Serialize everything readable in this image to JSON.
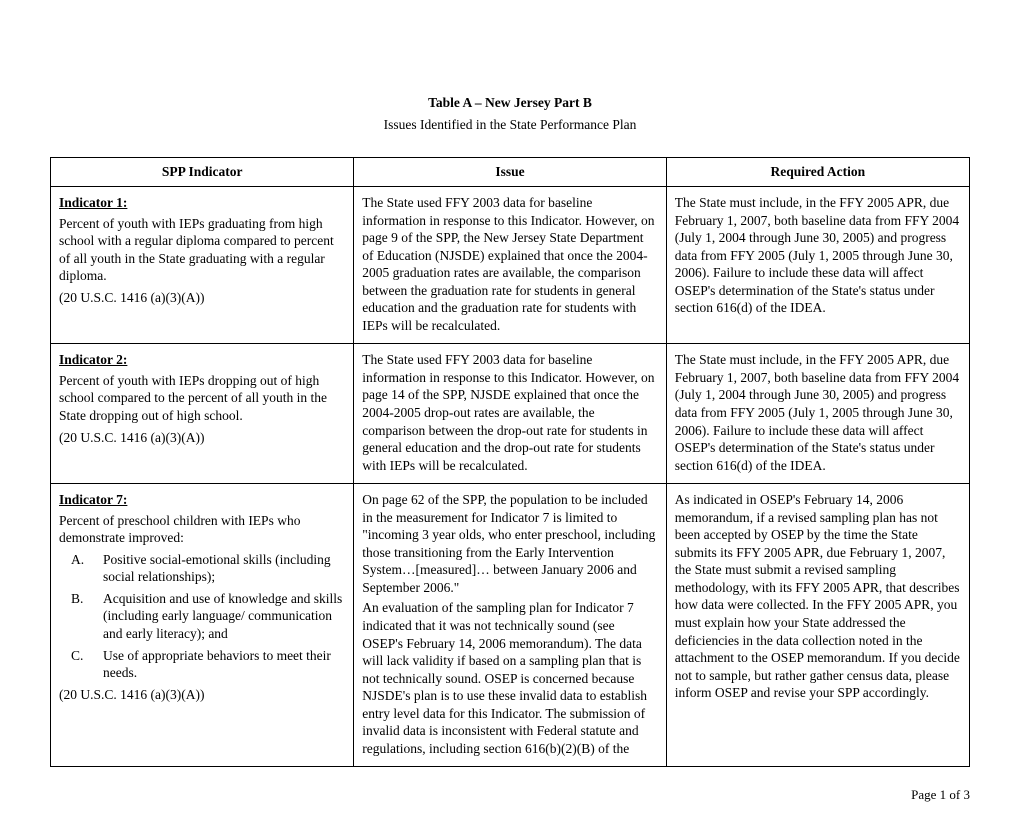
{
  "title_line1": "Table A – New Jersey Part B",
  "title_line2": "Issues Identified in the State Performance Plan",
  "headers": {
    "col1": "SPP Indicator",
    "col2": "Issue",
    "col3": "Required Action"
  },
  "rows": [
    {
      "indicator_label": "Indicator 1:",
      "indicator_body": "Percent of youth with IEPs graduating from high school with a regular diploma compared to percent of all youth in the State graduating with a regular diploma.",
      "citation": "(20 U.S.C. 1416 (a)(3)(A))",
      "issue": "The State used FFY 2003 data for baseline information in response to this Indicator.  However, on page 9 of the SPP, the New Jersey State Department of Education (NJSDE) explained that once the 2004-2005 graduation rates are available, the comparison between the graduation rate for students in general education and the graduation rate for students with IEPs will be recalculated.",
      "action": "The State must include, in the FFY 2005 APR, due February 1, 2007, both baseline data from FFY 2004 (July 1, 2004 through June 30, 2005) and progress data from FFY 2005 (July 1, 2005 through June 30, 2006).  Failure to include these data will affect OSEP's determination of the State's status under section 616(d) of the IDEA."
    },
    {
      "indicator_label": "Indicator 2:",
      "indicator_body": "Percent of youth with IEPs dropping out of high school compared to the percent of all youth in the State dropping out of high school.",
      "citation": "(20 U.S.C. 1416 (a)(3)(A))",
      "issue": "The State used FFY 2003 data for baseline information in response to this Indicator.  However, on page 14 of the SPP, NJSDE explained that once the 2004-2005 drop-out rates are available, the comparison between the drop-out rate for students in general education and the drop-out rate for students with IEPs will be recalculated.",
      "action": "The State must include, in the FFY 2005 APR, due February 1, 2007, both baseline data from FFY 2004 (July 1, 2004 through June 30, 2005) and progress data from FFY 2005 (July 1, 2005 through June 30, 2006).  Failure to include these data will affect OSEP's determination of the State's status under section 616(d) of the IDEA."
    },
    {
      "indicator_label": "Indicator 7:",
      "indicator_body": "Percent of preschool children with IEPs who demonstrate improved:",
      "list": [
        {
          "letter": "A.",
          "text": "Positive social-emotional skills (including social relationships);"
        },
        {
          "letter": "B.",
          "text": "Acquisition and use of knowledge and skills (including early language/ communication and early literacy); and"
        },
        {
          "letter": "C.",
          "text": "Use of appropriate behaviors to meet their needs."
        }
      ],
      "citation": " (20 U.S.C. 1416 (a)(3)(A))",
      "issue_p1": "On page 62 of the SPP, the population to be included in the measurement for Indicator 7 is limited to \"incoming 3 year olds, who enter preschool, including those transitioning from the Early Intervention System…[measured]… between January 2006 and September 2006.\"",
      "issue_p2": "An evaluation of the sampling plan for Indicator 7 indicated that it was not technically sound (see OSEP's February 14, 2006 memorandum). The data will lack validity if based on a sampling plan that is not technically sound.  OSEP is concerned because NJSDE's plan is to use these invalid data to establish entry level data for this Indicator.  The submission of invalid data is inconsistent with Federal statute and regulations, including section 616(b)(2)(B) of the",
      "action": "As indicated in OSEP's February 14, 2006 memorandum, if a revised sampling plan has not been accepted by OSEP by the time the State submits its FFY 2005 APR, due February 1, 2007, the State must submit a revised sampling methodology, with its FFY 2005 APR, that describes how data were collected.  In the FFY 2005 APR, you must explain how your State addressed the deficiencies in the data collection noted in the attachment to the OSEP memorandum.  If you decide not to sample, but rather gather census data, please inform OSEP and revise your SPP accordingly."
    }
  ],
  "pagenum": "Page 1 of 3"
}
